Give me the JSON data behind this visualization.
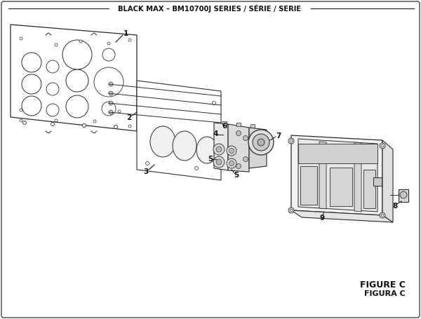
{
  "title": "BLACK MAX – BM10700J SERIES / SÉRIE / SERIE",
  "figure_label": "FIGURE C",
  "figura_label": "FIGURA C",
  "bg_color": "#ffffff",
  "line_color": "#2a2a2a",
  "text_color": "#111111"
}
